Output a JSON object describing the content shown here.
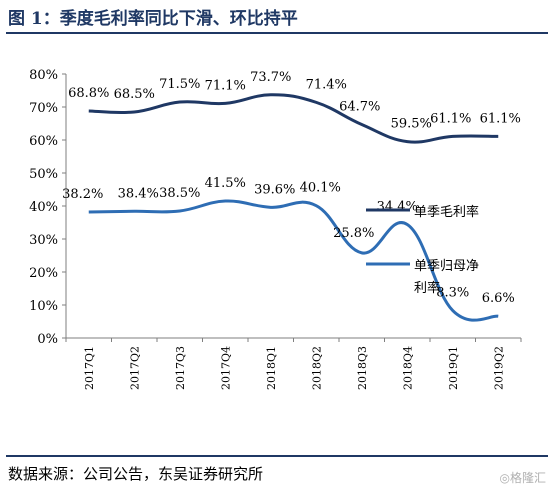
{
  "title": "图 1：季度毛利率同比下滑、环比持平",
  "source": "数据来源：公司公告，东吴证券研究所",
  "watermark": "◎格隆汇",
  "colors": {
    "title": "#1F3864",
    "series1": "#1F3864",
    "series2": "#2E6DB4"
  },
  "chart_data": {
    "type": "line",
    "x": [
      "2017Q1",
      "2017Q2",
      "2017Q3",
      "2017Q4",
      "2018Q1",
      "2018Q2",
      "2018Q3",
      "2018Q4",
      "2019Q1",
      "2019Q2"
    ],
    "y_ticks": [
      "0%",
      "10%",
      "20%",
      "30%",
      "40%",
      "50%",
      "60%",
      "70%",
      "80%"
    ],
    "ylim": [
      0,
      80
    ],
    "grid": false,
    "legend_position": "right",
    "series": [
      {
        "name": "单季毛利率",
        "values": [
          68.8,
          68.5,
          71.5,
          71.1,
          73.7,
          71.4,
          64.7,
          59.5,
          61.1,
          61.1
        ],
        "labels": [
          "68.8%",
          "68.5%",
          "71.5%",
          "71.1%",
          "73.7%",
          "71.4%",
          "64.7%",
          "59.5%",
          "61.1%",
          "61.1%"
        ]
      },
      {
        "name": "单季归母净利率",
        "values": [
          38.2,
          38.4,
          38.5,
          41.5,
          39.6,
          40.1,
          25.8,
          34.4,
          8.3,
          6.6
        ],
        "labels": [
          "38.2%",
          "38.4%",
          "38.5%",
          "41.5%",
          "39.6%",
          "40.1%",
          "25.8%",
          "34.4%",
          "8.3%",
          "6.6%"
        ]
      }
    ],
    "legend": [
      {
        "series": 0,
        "lines": [
          "单季毛利率"
        ]
      },
      {
        "series": 1,
        "lines": [
          "单季归母净",
          "利率"
        ]
      }
    ]
  }
}
